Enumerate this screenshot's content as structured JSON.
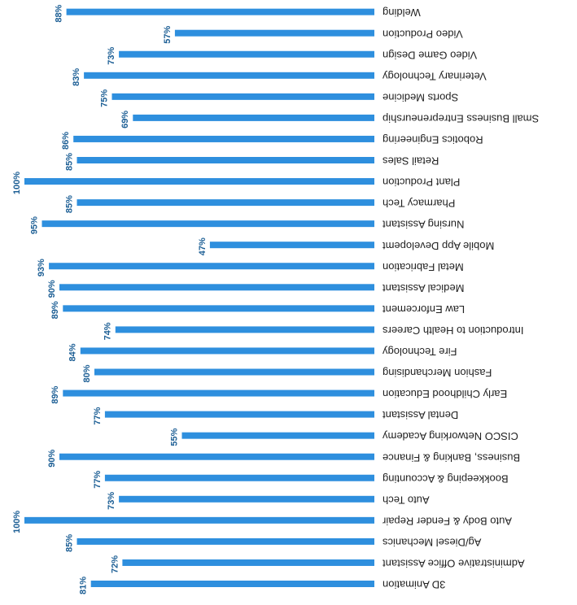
{
  "chart_data": {
    "type": "bar",
    "orientation": "horizontal",
    "color": "#2e8fde",
    "categories": [
      "3D Animation",
      "Administrative Office Assistant",
      "Ag/Diesel Mechanics",
      "Auto Body & Fender Repair",
      "Auto Tech",
      "Bookkeeping & Accounting",
      "Business, Banking & Finance",
      "CISCO Networking Academy",
      "Dental Assistant",
      "Early Childhood Education",
      "Fashion Merchandising",
      "Fire Technology",
      "Introduction to Health Careers",
      "Law Enforcement",
      "Medical Assistant",
      "Metal Fabrication",
      "Mobile App Developemt",
      "Nursing Assistant",
      "Pharmacy Tech",
      "Plant Production",
      "Retail Sales",
      "Robotics Engineering",
      "Small Business Entrepreneurship",
      "Sports Medicine",
      "Veterinary Technology",
      "Video Game Design",
      "Video Production",
      "Welding"
    ],
    "values": [
      81,
      72,
      85,
      100,
      73,
      77,
      90,
      55,
      77,
      89,
      80,
      84,
      74,
      89,
      90,
      93,
      47,
      95,
      85,
      100,
      85,
      86,
      69,
      75,
      83,
      73,
      57,
      88
    ],
    "value_labels": [
      "81%",
      "72%",
      "85%",
      "100%",
      "73%",
      "77%",
      "90%",
      "55%",
      "77%",
      "89%",
      "80%",
      "84%",
      "74%",
      "89%",
      "90%",
      "93%",
      "47%",
      "95%",
      "85%",
      "100%",
      "85%",
      "86%",
      "69%",
      "75%",
      "83%",
      "73%",
      "57%",
      "88%"
    ],
    "xlim": [
      0,
      100
    ]
  }
}
